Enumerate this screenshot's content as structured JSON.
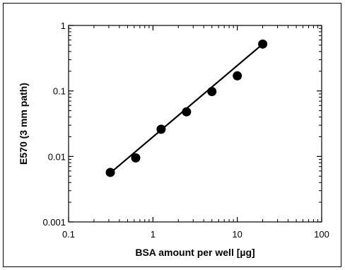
{
  "chart_data": {
    "type": "scatter",
    "title": "",
    "xlabel": "BSA amount per well [µg]",
    "ylabel": "E570 (3 mm path)",
    "xscale": "log",
    "yscale": "log",
    "xlim": [
      0.1,
      100
    ],
    "ylim": [
      0.001,
      1
    ],
    "x_ticks": [
      {
        "value": 0.1,
        "label": "0.1"
      },
      {
        "value": 1,
        "label": "1"
      },
      {
        "value": 10,
        "label": "10"
      },
      {
        "value": 100,
        "label": "100"
      }
    ],
    "y_ticks": [
      {
        "value": 0.001,
        "label": "0.001"
      },
      {
        "value": 0.01,
        "label": "0.01"
      },
      {
        "value": 0.1,
        "label": "0.1"
      },
      {
        "value": 1,
        "label": "1"
      }
    ],
    "series": [
      {
        "x": [
          0.3125,
          0.625,
          1.25,
          2.5,
          5,
          10,
          20
        ],
        "y": [
          0.0057,
          0.0095,
          0.026,
          0.048,
          0.098,
          0.17,
          0.52
        ]
      }
    ],
    "fit_line": {
      "x": [
        0.3125,
        20
      ],
      "y": [
        0.0056,
        0.52
      ]
    },
    "grid": false,
    "legend": "none",
    "colors": {
      "marker": "#000000",
      "line": "#000000"
    }
  }
}
